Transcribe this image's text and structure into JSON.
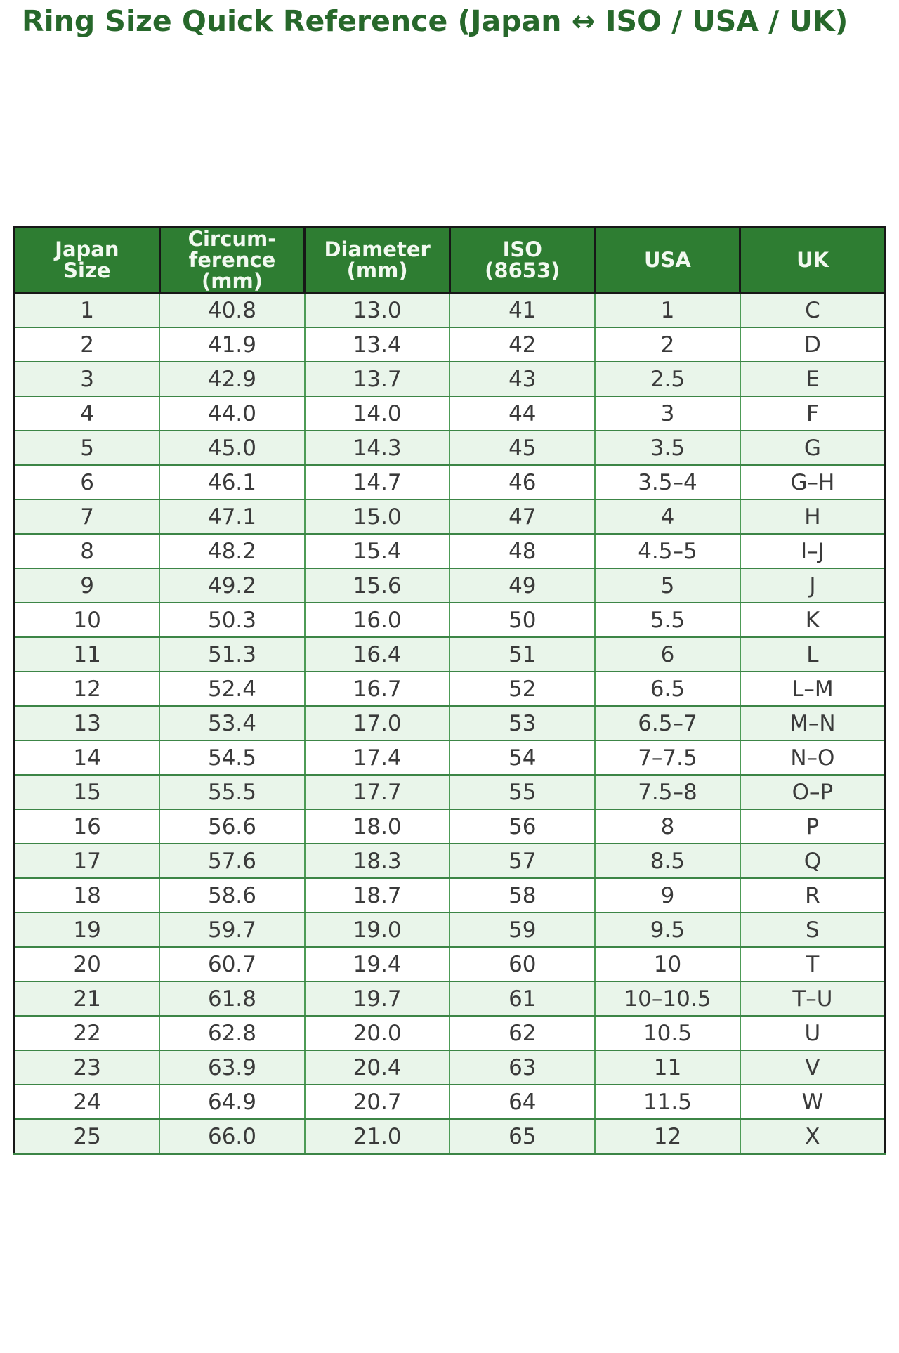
{
  "page": {
    "title": "Ring Size Quick Reference (Japan ↔ ISO / USA / UK)"
  },
  "colors": {
    "title_text": "#27682b",
    "header_bg": "#2e7d32",
    "header_text": "#f2f9f0",
    "row_bg": "#ffffff",
    "row_alt_bg": "#e9f5ea",
    "cell_text": "#3a3a3a",
    "grid_green": "#4d9b56",
    "grid_green_dark": "#3c8546",
    "grid_dark": "#171717"
  },
  "chart_data": {
    "type": "table",
    "title": "Ring Size Quick Reference (Japan ↔ ISO / USA / UK)",
    "legend_position": "none",
    "grid": true,
    "columns": [
      "Japan\nSize",
      "Circum-\nference\n(mm)",
      "Diameter\n(mm)",
      "ISO\n(8653)",
      "USA",
      "UK"
    ],
    "rows": [
      [
        "1",
        "40.8",
        "13.0",
        "41",
        "1",
        "C"
      ],
      [
        "2",
        "41.9",
        "13.4",
        "42",
        "2",
        "D"
      ],
      [
        "3",
        "42.9",
        "13.7",
        "43",
        "2.5",
        "E"
      ],
      [
        "4",
        "44.0",
        "14.0",
        "44",
        "3",
        "F"
      ],
      [
        "5",
        "45.0",
        "14.3",
        "45",
        "3.5",
        "G"
      ],
      [
        "6",
        "46.1",
        "14.7",
        "46",
        "3.5–4",
        "G–H"
      ],
      [
        "7",
        "47.1",
        "15.0",
        "47",
        "4",
        "H"
      ],
      [
        "8",
        "48.2",
        "15.4",
        "48",
        "4.5–5",
        "I–J"
      ],
      [
        "9",
        "49.2",
        "15.6",
        "49",
        "5",
        "J"
      ],
      [
        "10",
        "50.3",
        "16.0",
        "50",
        "5.5",
        "K"
      ],
      [
        "11",
        "51.3",
        "16.4",
        "51",
        "6",
        "L"
      ],
      [
        "12",
        "52.4",
        "16.7",
        "52",
        "6.5",
        "L–M"
      ],
      [
        "13",
        "53.4",
        "17.0",
        "53",
        "6.5–7",
        "M–N"
      ],
      [
        "14",
        "54.5",
        "17.4",
        "54",
        "7–7.5",
        "N–O"
      ],
      [
        "15",
        "55.5",
        "17.7",
        "55",
        "7.5–8",
        "O–P"
      ],
      [
        "16",
        "56.6",
        "18.0",
        "56",
        "8",
        "P"
      ],
      [
        "17",
        "57.6",
        "18.3",
        "57",
        "8.5",
        "Q"
      ],
      [
        "18",
        "58.6",
        "18.7",
        "58",
        "9",
        "R"
      ],
      [
        "19",
        "59.7",
        "19.0",
        "59",
        "9.5",
        "S"
      ],
      [
        "20",
        "60.7",
        "19.4",
        "60",
        "10",
        "T"
      ],
      [
        "21",
        "61.8",
        "19.7",
        "61",
        "10–10.5",
        "T–U"
      ],
      [
        "22",
        "62.8",
        "20.0",
        "62",
        "10.5",
        "U"
      ],
      [
        "23",
        "63.9",
        "20.4",
        "63",
        "11",
        "V"
      ],
      [
        "24",
        "64.9",
        "20.7",
        "64",
        "11.5",
        "W"
      ],
      [
        "25",
        "66.0",
        "21.0",
        "65",
        "12",
        "X"
      ]
    ]
  }
}
